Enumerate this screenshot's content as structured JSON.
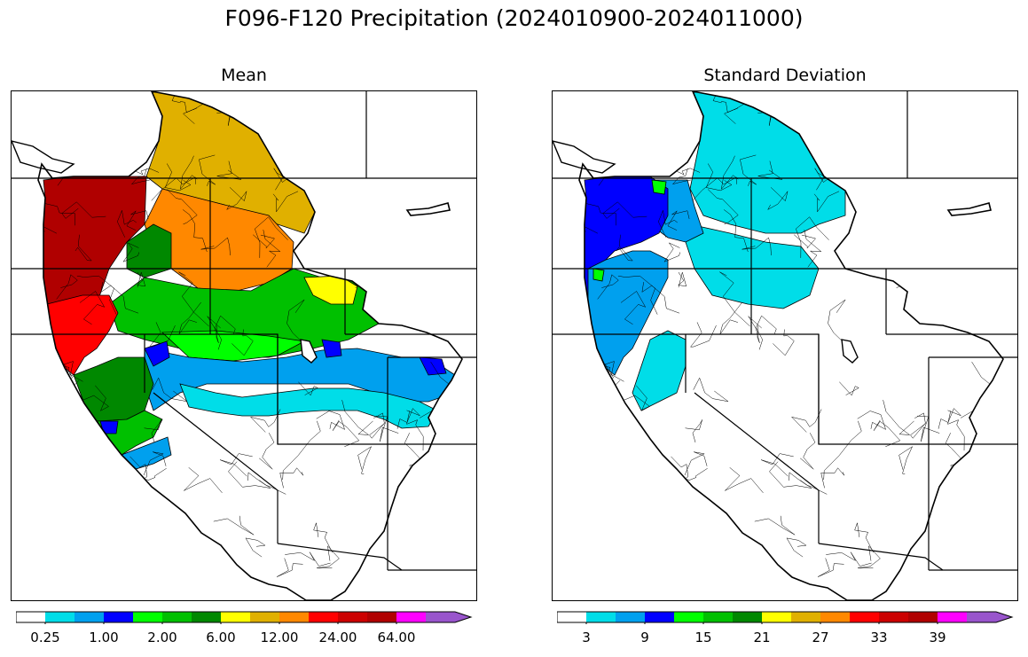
{
  "figure": {
    "title": "F096-F120 Precipitation (2024010900-2024011000)"
  },
  "panels": [
    {
      "title": "Mean",
      "colorbar": {
        "colors": [
          "#ffffff",
          "#00dde8",
          "#00a0ee",
          "#0000ff",
          "#00ff00",
          "#00c000",
          "#008800",
          "#ffff00",
          "#e0b000",
          "#ff8800",
          "#ff0000",
          "#cc0000",
          "#b00000",
          "#ff00ff",
          "#9955cc"
        ],
        "tick_labels": [
          "0.25",
          "1.00",
          "2.00",
          "6.00",
          "12.00",
          "24.00",
          "64.00"
        ],
        "extend": "max"
      }
    },
    {
      "title": "Standard Deviation",
      "colorbar": {
        "colors": [
          "#ffffff",
          "#00dde8",
          "#00a0ee",
          "#0000ff",
          "#00ff00",
          "#00c000",
          "#008800",
          "#ffff00",
          "#e0b000",
          "#ff8800",
          "#ff0000",
          "#cc0000",
          "#b00000",
          "#ff00ff",
          "#9955cc"
        ],
        "tick_labels": [
          "3",
          "9",
          "15",
          "21",
          "27",
          "33",
          "39"
        ],
        "extend": "max"
      }
    }
  ]
}
